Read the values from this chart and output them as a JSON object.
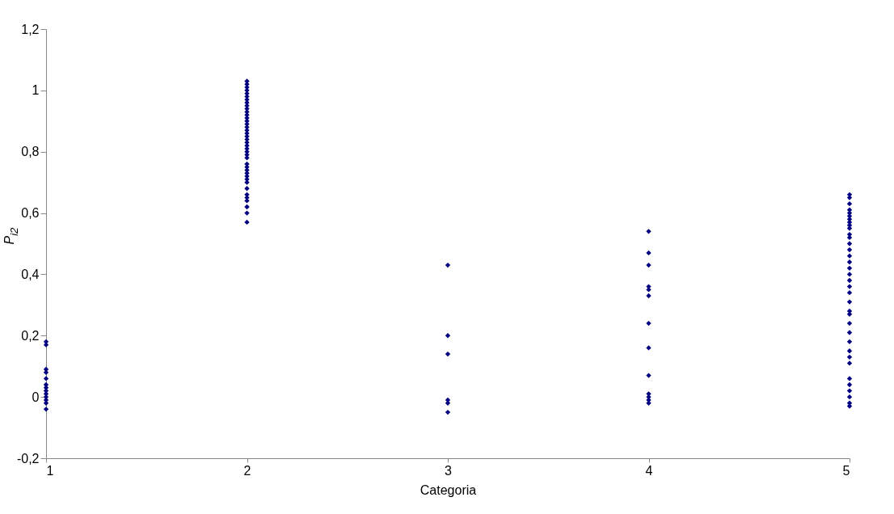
{
  "chart_data": {
    "type": "scatter",
    "xlabel": "Categoria",
    "ylabel": "P$_{i2}$",
    "x": [
      1,
      1,
      1,
      1,
      1,
      1,
      1,
      1,
      1,
      1,
      1,
      1,
      1,
      2,
      2,
      2,
      2,
      2,
      2,
      2,
      2,
      2,
      2,
      2,
      2,
      2,
      2,
      2,
      2,
      2,
      2,
      2,
      2,
      2,
      2,
      2,
      2,
      2,
      2,
      2,
      2,
      2,
      2,
      2,
      2,
      2,
      2,
      2,
      2,
      2,
      2,
      2,
      2,
      3,
      3,
      3,
      3,
      3,
      3,
      4,
      4,
      4,
      4,
      4,
      4,
      4,
      4,
      4,
      4,
      4,
      4,
      4,
      5,
      5,
      5,
      5,
      5,
      5,
      5,
      5,
      5,
      5,
      5,
      5,
      5,
      5,
      5,
      5,
      5,
      5,
      5,
      5,
      5,
      5,
      5,
      5,
      5,
      5,
      5,
      5,
      5,
      5,
      5,
      5,
      5,
      5,
      5,
      5
    ],
    "series": [
      {
        "color": "#000080",
        "values": [
          0.18,
          0.17,
          0.09,
          0.08,
          0.06,
          0.04,
          0.03,
          0.02,
          0.01,
          0,
          -0.01,
          -0.02,
          -0.04,
          0.57,
          0.6,
          0.62,
          0.64,
          0.66,
          0.68,
          0.7,
          0.71,
          0.72,
          0.74,
          0.75,
          0.76,
          0.78,
          0.79,
          0.8,
          0.81,
          0.82,
          0.83,
          0.84,
          0.85,
          0.86,
          0.87,
          0.88,
          0.89,
          0.9,
          0.91,
          0.92,
          0.93,
          0.94,
          0.95,
          0.96,
          0.97,
          0.98,
          0.99,
          1,
          1.01,
          1.02,
          1.03,
          0.65,
          0.73,
          0.43,
          0.2,
          0.14,
          -0.01,
          -0.02,
          -0.05,
          0.54,
          0.47,
          0.43,
          0.36,
          0.35,
          0.33,
          0.24,
          0.16,
          0.07,
          0.01,
          0,
          -0.01,
          -0.02,
          0.66,
          0.65,
          0.63,
          0.61,
          0.6,
          0.59,
          0.58,
          0.57,
          0.56,
          0.55,
          0.53,
          0.52,
          0.5,
          0.48,
          0.46,
          0.44,
          0.42,
          0.4,
          0.38,
          0.36,
          0.34,
          0.31,
          0.28,
          0.24,
          0.21,
          0.18,
          0.15,
          0.13,
          0.11,
          0.06,
          0.04,
          0.02,
          0,
          -0.02,
          -0.03,
          0.27
        ]
      }
    ],
    "marker": "diamond",
    "grid": false,
    "xlim": [
      1,
      5
    ],
    "xticks": [
      1,
      2,
      3,
      4,
      5
    ],
    "ylim": [
      -0.2,
      1.2
    ],
    "yticks": [
      {
        "value": -0.2,
        "label": "-0,2"
      },
      0,
      {
        "value": 0.2,
        "label": "0,2"
      },
      {
        "value": 0.4,
        "label": "0,4"
      },
      {
        "value": 0.6,
        "label": "0,6"
      },
      {
        "value": 0.8,
        "label": "0,8"
      },
      {
        "value": 1,
        "label": "1"
      },
      {
        "value": 1.2,
        "label": "1,2"
      }
    ]
  }
}
